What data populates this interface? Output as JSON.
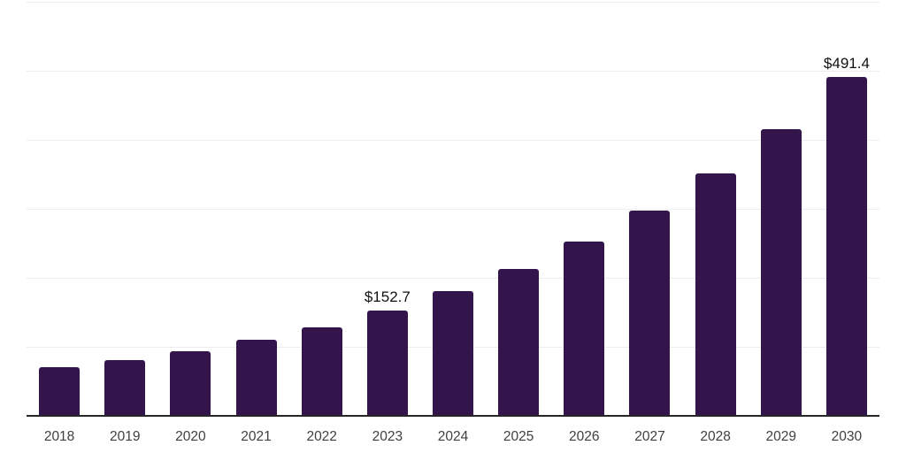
{
  "chart_data": {
    "type": "bar",
    "title": "",
    "xlabel": "",
    "ylabel": "",
    "categories": [
      "2018",
      "2019",
      "2020",
      "2021",
      "2022",
      "2023",
      "2024",
      "2025",
      "2026",
      "2027",
      "2028",
      "2029",
      "2030"
    ],
    "values": [
      70.5,
      81.0,
      93.5,
      110.0,
      128.0,
      152.7,
      180.4,
      213.2,
      252.0,
      297.7,
      351.8,
      415.8,
      491.4
    ],
    "data_labels": [
      null,
      null,
      null,
      null,
      null,
      "$152.7",
      null,
      null,
      null,
      null,
      null,
      null,
      "$491.4"
    ],
    "ylim": [
      0,
      600
    ],
    "gridline_step": 100,
    "grid": "horizontal",
    "y_tick_labels_shown": false,
    "legend_position": "none",
    "colors": {
      "bar": "#33154C",
      "axis_line": "#262626",
      "gridline": "#EDEDED",
      "x_tick_label": "#404040",
      "data_label": "#111111",
      "background": "#FFFFFF"
    }
  }
}
